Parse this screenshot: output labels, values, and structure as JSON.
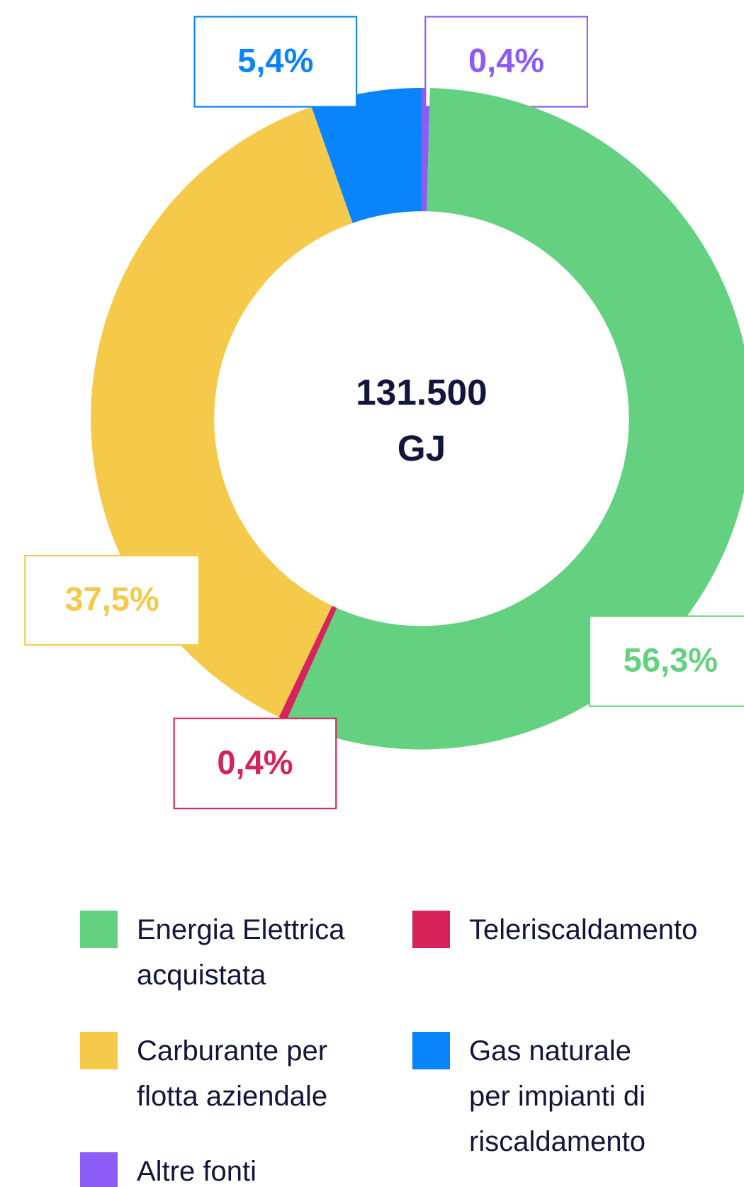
{
  "chart_data": {
    "type": "donut",
    "center_text": [
      "131.500",
      "GJ"
    ],
    "series": [
      {
        "name": "Altre fonti",
        "color": "#8c5cf7",
        "value": 0.4,
        "value_label": "0,4%"
      },
      {
        "name": "Energia Elettrica acquistata",
        "color": "#63d17f",
        "value": 56.3,
        "value_label": "56,3%"
      },
      {
        "name": "Teleriscaldamento",
        "color": "#d6245a",
        "value": 0.4,
        "value_label": "0,4%"
      },
      {
        "name": "Carburante per flotta aziendale",
        "color": "#f5ca4b",
        "value": 37.5,
        "value_label": "37,5%"
      },
      {
        "name": "Gas naturale per impianti di riscaldamento",
        "color": "#0a84fa",
        "value": 5.4,
        "value_label": "5,4%"
      }
    ]
  }
}
